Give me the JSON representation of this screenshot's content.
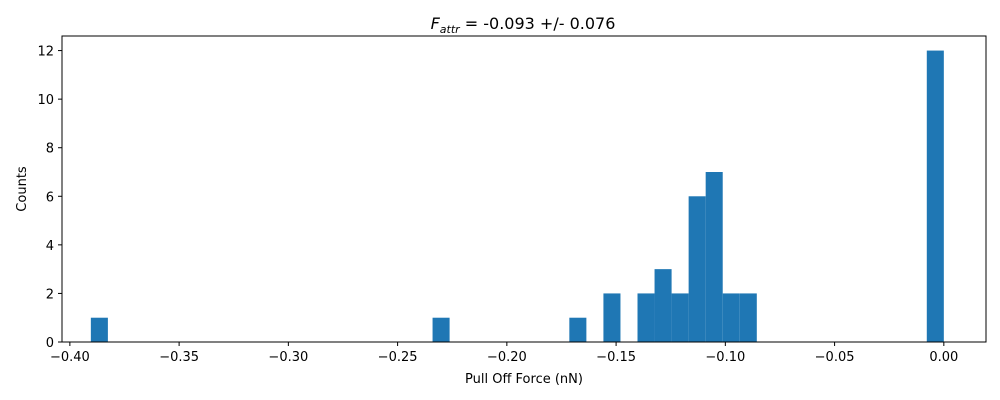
{
  "chart_data": {
    "type": "bar",
    "title_symbol": "F",
    "title_subscript": "attr",
    "title_rest": " = -0.093 +/- 0.076",
    "xlabel": "Pull Off Force (nN)",
    "ylabel": "Counts",
    "xlim": [
      -0.4036,
      0.0193
    ],
    "ylim": [
      0,
      12.6
    ],
    "xticks": [
      -0.4,
      -0.35,
      -0.3,
      -0.25,
      -0.2,
      -0.15,
      -0.1,
      -0.05,
      0.0
    ],
    "xtick_labels": [
      "−0.40",
      "−0.35",
      "−0.30",
      "−0.25",
      "−0.20",
      "−0.15",
      "−0.10",
      "−0.05",
      "0.00"
    ],
    "yticks": [
      0,
      2,
      4,
      6,
      8,
      10,
      12
    ],
    "ytick_labels": [
      "0",
      "2",
      "4",
      "6",
      "8",
      "10",
      "12"
    ],
    "bar_color": "#1f77b4",
    "bins": [
      {
        "x0": -0.3904,
        "x1": -0.3826,
        "count": 1
      },
      {
        "x0": -0.234,
        "x1": -0.2262,
        "count": 1
      },
      {
        "x0": -0.1714,
        "x1": -0.1636,
        "count": 1
      },
      {
        "x0": -0.1558,
        "x1": -0.148,
        "count": 2
      },
      {
        "x0": -0.1402,
        "x1": -0.1324,
        "count": 2
      },
      {
        "x0": -0.1324,
        "x1": -0.1246,
        "count": 3
      },
      {
        "x0": -0.1246,
        "x1": -0.1168,
        "count": 2
      },
      {
        "x0": -0.1168,
        "x1": -0.109,
        "count": 6
      },
      {
        "x0": -0.109,
        "x1": -0.1012,
        "count": 7
      },
      {
        "x0": -0.1012,
        "x1": -0.0934,
        "count": 2
      },
      {
        "x0": -0.0934,
        "x1": -0.0856,
        "count": 2
      },
      {
        "x0": -0.0078,
        "x1": 0.0,
        "count": 12
      }
    ]
  }
}
